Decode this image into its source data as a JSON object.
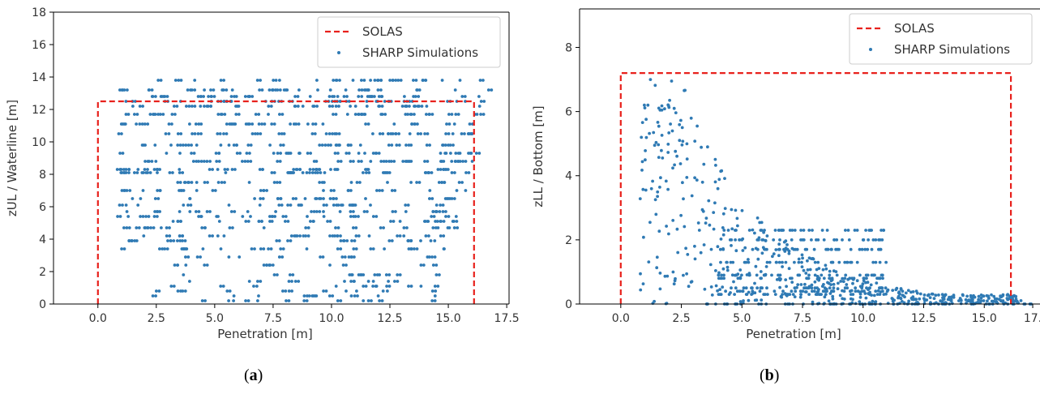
{
  "chart_data": [
    {
      "type": "scatter",
      "panel": "a",
      "caption_letter": "a",
      "xlabel": "Penetration [m]",
      "ylabel": "zUL / Waterline [m]",
      "xlim": [
        -1.9,
        17.6
      ],
      "ylim": [
        0,
        18
      ],
      "xticks": [
        "0.0",
        "2.5",
        "5.0",
        "7.5",
        "10.0",
        "12.5",
        "15.0",
        "17.5"
      ],
      "yticks": [
        "0",
        "2",
        "4",
        "6",
        "8",
        "10",
        "12",
        "14",
        "16",
        "18"
      ],
      "legend": {
        "position": "top-right",
        "entries": [
          "SOLAS",
          "SHARP Simulations"
        ]
      },
      "series": [
        {
          "name": "SOLAS",
          "style": "dashed-line",
          "color": "#e8211c",
          "x": [
            0,
            0,
            16.1,
            16.1
          ],
          "y": [
            0,
            12.5,
            12.5,
            0
          ]
        },
        {
          "name": "SHARP Simulations",
          "style": "points",
          "color": "#2f7ab4",
          "levels": [
            13.8,
            13.2,
            12.8,
            12.5,
            12.2,
            11.7,
            11.1,
            10.5,
            9.8,
            9.3,
            8.8,
            8.3,
            8.1,
            7.5,
            7.0,
            6.5,
            6.1,
            5.7,
            5.4,
            5.1,
            4.7,
            4.2,
            3.9,
            3.4,
            2.9,
            2.4,
            1.8,
            1.4,
            1.1,
            0.8,
            0.5,
            0.2
          ]
        }
      ]
    },
    {
      "type": "scatter",
      "panel": "b",
      "caption_letter": "b",
      "xlabel": "Penetration [m]",
      "ylabel": "zLL / Bottom [m]",
      "xlim": [
        -1.7,
        17.3
      ],
      "ylim": [
        0,
        9.2
      ],
      "xticks": [
        "0.0",
        "2.5",
        "5.0",
        "7.5",
        "10.0",
        "12.5",
        "15.0",
        "17."
      ],
      "yticks": [
        "0",
        "2",
        "4",
        "6",
        "8"
      ],
      "legend": {
        "position": "top-right",
        "entries": [
          "SOLAS",
          "SHARP Simulations"
        ]
      },
      "series": [
        {
          "name": "SOLAS",
          "style": "dashed-line",
          "color": "#e8211c",
          "x": [
            0,
            0,
            16.1,
            16.1
          ],
          "y": [
            0,
            7.2,
            7.2,
            0
          ]
        },
        {
          "name": "SHARP Simulations",
          "style": "points",
          "color": "#2f7ab4",
          "levels": [
            2.3,
            2.0,
            1.7,
            1.3,
            0.9,
            0.8,
            0.5,
            0.4,
            0.3
          ]
        }
      ]
    }
  ]
}
